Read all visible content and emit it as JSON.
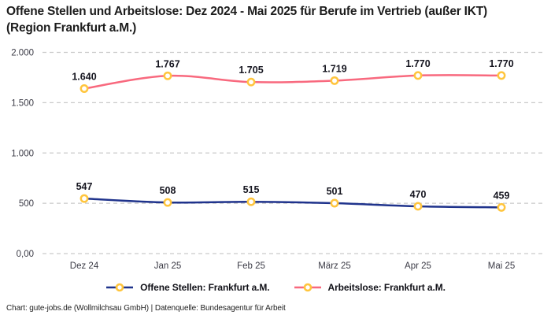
{
  "title": "Offene Stellen und Arbeitslose: Dez 2024 - Mai 2025 für Berufe im Vertrieb (außer IKT) (Region Frankfurt a.M.)",
  "footer": "Chart: gute-jobs.de (Wollmilchsau GmbH) | Datenquelle: Bundesagentur für Arbeit",
  "colors": {
    "open_positions_line": "#1F338C",
    "unemployed_line": "#F8697E",
    "marker_ring": "#FFC53D",
    "marker_fill": "#FFFFFF",
    "gridline": "#C9C9C9",
    "data_label": "#15151F",
    "axis_text": "#3B3B46",
    "title_text": "#1C1C1C"
  },
  "chart_data": {
    "type": "line",
    "title": "Offene Stellen und Arbeitslose: Dez 2024 - Mai 2025 für Berufe im Vertrieb (außer IKT) (Region Frankfurt a.M.)",
    "categories": [
      "Dez 24",
      "Jan 25",
      "Feb 25",
      "März 25",
      "Apr 25",
      "Mai 25"
    ],
    "series": [
      {
        "name": "Arbeitslose: Frankfurt a.M.",
        "values": [
          1640,
          1767,
          1705,
          1719,
          1770,
          1770
        ],
        "labels": [
          "1.640",
          "1.767",
          "1.705",
          "1.719",
          "1.770",
          "1.770"
        ],
        "color": "#F8697E"
      },
      {
        "name": "Offene Stellen: Frankfurt a.M.",
        "values": [
          547,
          508,
          515,
          501,
          470,
          459
        ],
        "labels": [
          "547",
          "508",
          "515",
          "501",
          "470",
          "459"
        ],
        "color": "#1F338C"
      }
    ],
    "yticks": [
      {
        "label": "2.000",
        "value": 2000
      },
      {
        "label": "1.500",
        "value": 1500
      },
      {
        "label": "1.000",
        "value": 1000
      },
      {
        "label": "500",
        "value": 500
      },
      {
        "label": "0,00",
        "value": 0
      }
    ],
    "ylim": [
      0,
      2000
    ],
    "grid": true,
    "grid_style": "dashed",
    "legend_position": "bottom",
    "marker": "circle-open",
    "marker_color": "#FFC53D"
  },
  "legend": {
    "items": [
      {
        "label": "Offene Stellen: Frankfurt a.M.",
        "color": "#1F338C"
      },
      {
        "label": "Arbeitslose: Frankfurt a.M.",
        "color": "#F8697E"
      }
    ]
  }
}
